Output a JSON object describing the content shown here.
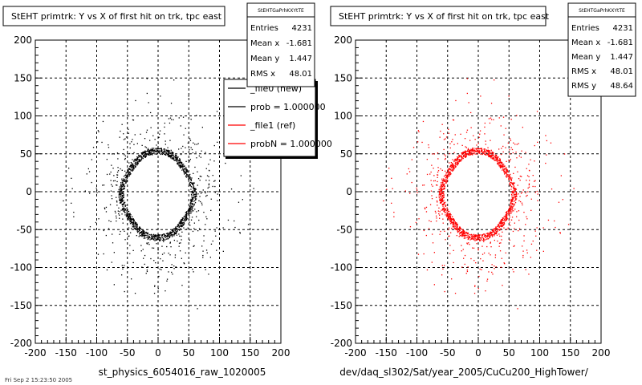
{
  "footer": "Fri Sep 2 15:23:50 2005",
  "chart_data": [
    {
      "type": "scatter",
      "title": "StEHT primtrk: Y vs X of first hit on trk, tpc east",
      "xlabel": "st_physics_6054016_raw_1020005",
      "ylabel": "",
      "xlim": [
        -200,
        200
      ],
      "ylim": [
        -200,
        200
      ],
      "xticks": [
        -200,
        -150,
        -100,
        -50,
        0,
        50,
        100,
        150,
        200
      ],
      "yticks": [
        -200,
        -150,
        -100,
        -50,
        0,
        50,
        100,
        150,
        200
      ],
      "grid": true,
      "marker_color": "#000000",
      "ring": {
        "center_x": -1.7,
        "center_y": -3,
        "inner_radius": 52,
        "outer_radius": 60
      },
      "stats": {
        "name": "StEHTGaPrhKXYtTE",
        "rows": [
          {
            "label": "Entries",
            "value": "4231"
          },
          {
            "label": "Mean x",
            "value": "-1.681"
          },
          {
            "label": "Mean y",
            "value": "1.447"
          },
          {
            "label": "RMS x",
            "value": "48.01"
          }
        ]
      },
      "legend": {
        "position": "top-right",
        "entries": [
          {
            "label": "_file0 (new)",
            "color": "#000000"
          },
          {
            "label": "prob = 1.000000",
            "color": "#000000"
          },
          {
            "label": "_file1 (ref)",
            "color": "#ff0000"
          },
          {
            "label": "probN = 1.000000",
            "color": "#ff0000"
          }
        ]
      }
    },
    {
      "type": "scatter",
      "title": "StEHT primtrk: Y vs X of first hit on trk, tpc east",
      "xlabel": "dev/daq_sl302/Sat/year_2005/CuCu200_HighTower/",
      "ylabel": "",
      "xlim": [
        -200,
        200
      ],
      "ylim": [
        -200,
        200
      ],
      "xticks": [
        -200,
        -150,
        -100,
        -50,
        0,
        50,
        100,
        150,
        200
      ],
      "yticks": [
        -200,
        -150,
        -100,
        -50,
        0,
        50,
        100,
        150,
        200
      ],
      "grid": true,
      "marker_color": "#ff0000",
      "ring": {
        "center_x": -1.7,
        "center_y": -3,
        "inner_radius": 52,
        "outer_radius": 60
      },
      "stats": {
        "name": "StEHTGaPrhKXYtTE",
        "rows": [
          {
            "label": "Entries",
            "value": "4231"
          },
          {
            "label": "Mean x",
            "value": "-1.681"
          },
          {
            "label": "Mean y",
            "value": "1.447"
          },
          {
            "label": "RMS x",
            "value": "48.01"
          },
          {
            "label": "RMS y",
            "value": "48.64"
          }
        ]
      }
    }
  ]
}
